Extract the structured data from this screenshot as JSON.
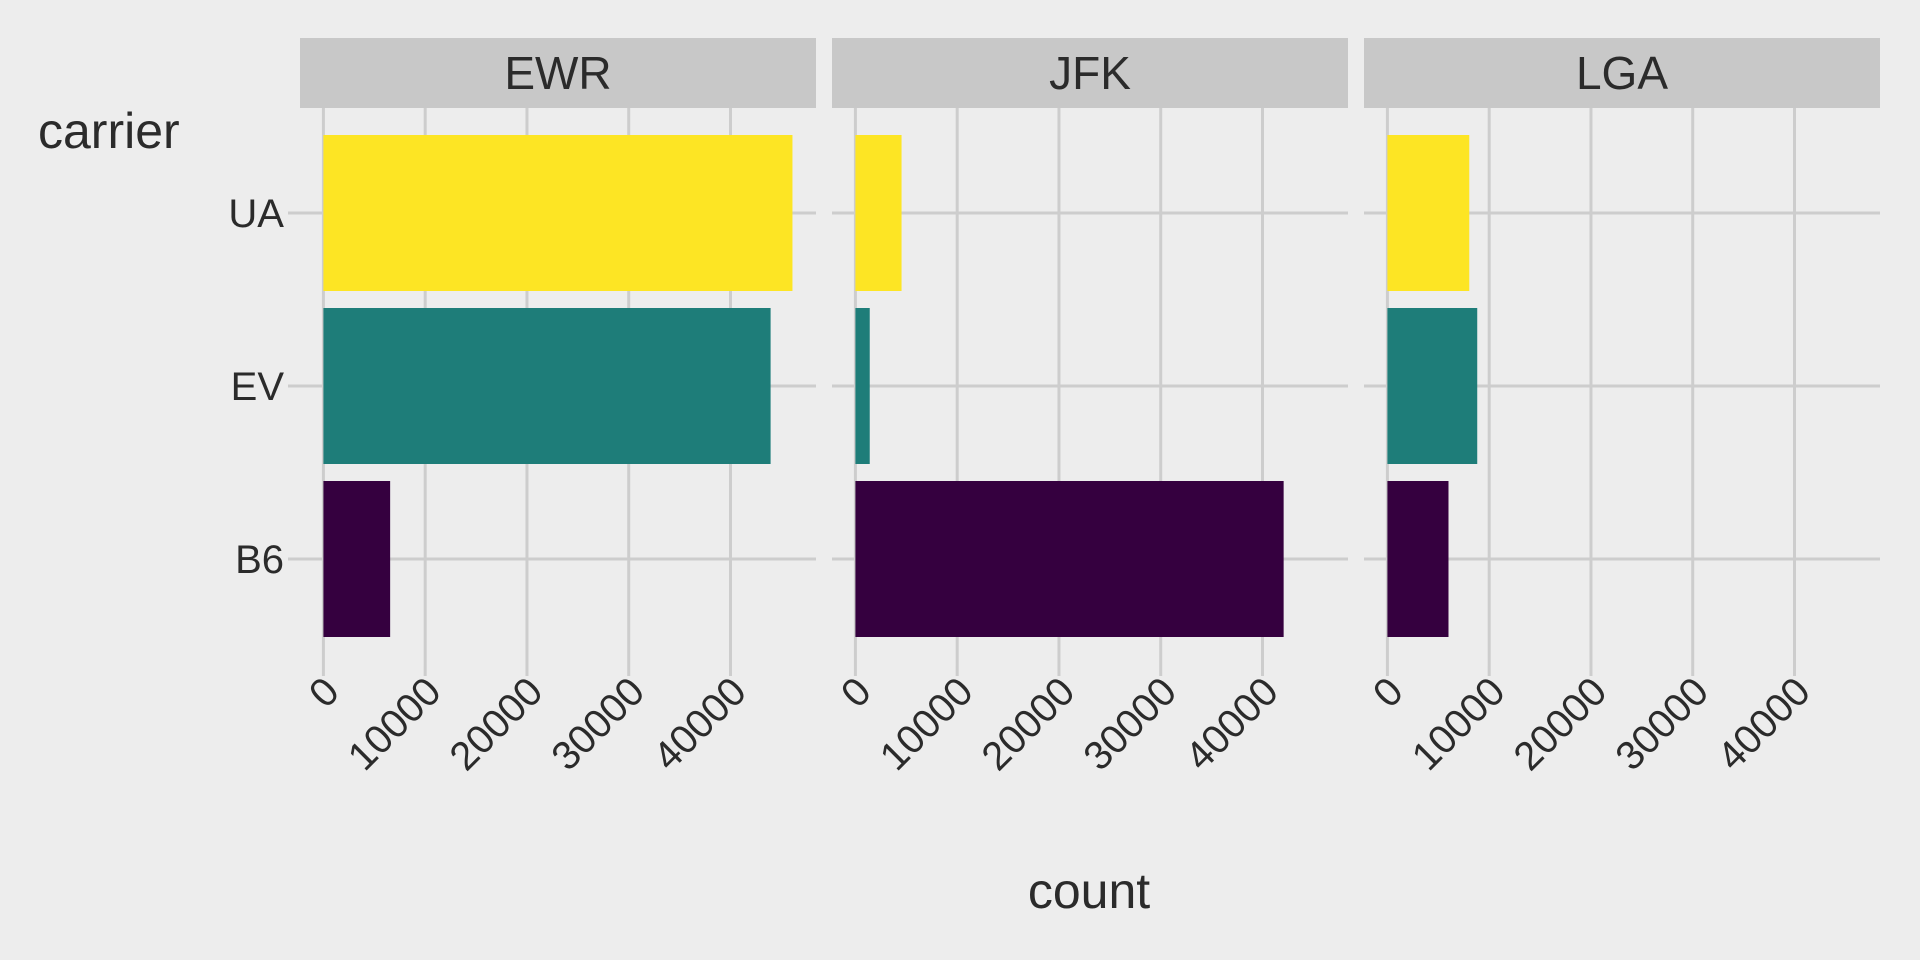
{
  "chart_data": {
    "type": "bar",
    "orientation": "horizontal",
    "facet_by": "origin",
    "panels": [
      "EWR",
      "JFK",
      "LGA"
    ],
    "categories": [
      "B6",
      "EV",
      "UA"
    ],
    "series": [
      {
        "panel": "EWR",
        "values": {
          "B6": 6557,
          "EV": 43939,
          "UA": 46087
        }
      },
      {
        "panel": "JFK",
        "values": {
          "B6": 42076,
          "EV": 1408,
          "UA": 4534
        }
      },
      {
        "panel": "LGA",
        "values": {
          "B6": 6002,
          "EV": 8826,
          "UA": 8044
        }
      }
    ],
    "fill_colors": {
      "B6": "#35003F",
      "EV": "#1E7D79",
      "UA": "#FDE524"
    },
    "xlabel": "count",
    "ylabel": "carrier",
    "xticks": [
      0,
      10000,
      20000,
      30000,
      40000
    ],
    "xtick_labels": [
      "0",
      "10000",
      "20000",
      "30000",
      "40000"
    ],
    "xlim": [
      -2300,
      48400
    ],
    "xtick_rotation": 45,
    "grid": true,
    "legend": "none",
    "theme": {
      "background": "#EDEDED",
      "panel_background": "#EDEDED",
      "strip_background": "#C8C8C8",
      "grid_color": "#CDCDCD",
      "text_color": "#2B2B2B"
    }
  }
}
